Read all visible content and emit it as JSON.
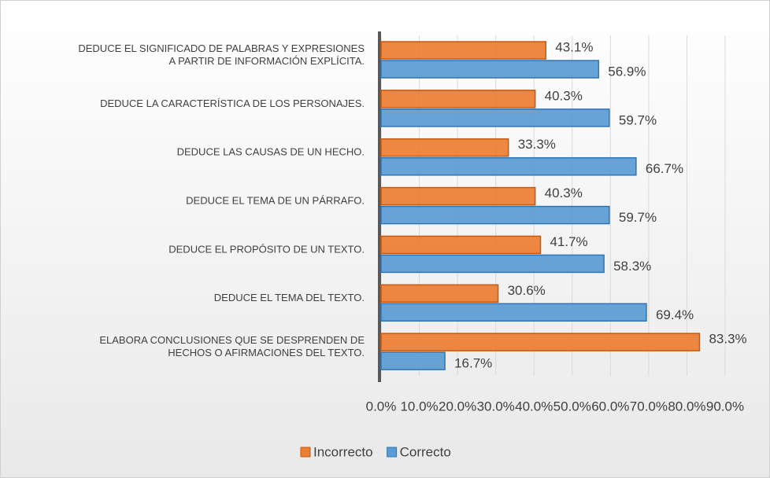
{
  "chart_data": {
    "type": "bar",
    "orientation": "horizontal",
    "categories": [
      "DEDUCE EL SIGNIFICADO DE PALABRAS Y EXPRESIONES\nA PARTIR DE INFORMACIÓN EXPLÍCITA.",
      "DEDUCE LA CARACTERÍSTICA DE LOS PERSONAJES.",
      "DEDUCE LAS CAUSAS DE UN HECHO.",
      "DEDUCE EL TEMA DE UN PÁRRAFO.",
      "DEDUCE EL PROPÓSITO DE UN TEXTO.",
      "DEDUCE EL TEMA DEL TEXTO.",
      "ELABORA CONCLUSIONES QUE SE DESPRENDEN DE\nHECHOS O AFIRMACIONES DEL TEXTO."
    ],
    "series": [
      {
        "name": "Incorrecto",
        "color": "#ed7d31",
        "values": [
          43.1,
          40.3,
          33.3,
          40.3,
          41.7,
          30.6,
          83.3
        ],
        "value_labels": [
          "43.1%",
          "40.3%",
          "33.3%",
          "40.3%",
          "41.7%",
          "30.6%",
          "83.3%"
        ]
      },
      {
        "name": "Correcto",
        "color": "#5b9bd5",
        "values": [
          56.9,
          59.7,
          66.7,
          59.7,
          58.3,
          69.4,
          16.7
        ],
        "value_labels": [
          "56.9%",
          "59.7%",
          "66.7%",
          "59.7%",
          "58.3%",
          "69.4%",
          "16.7%"
        ]
      }
    ],
    "xlim": [
      0,
      90
    ],
    "xticks": [
      {
        "value": 0,
        "label": "0.0%"
      },
      {
        "value": 10,
        "label": "10.0%"
      },
      {
        "value": 20,
        "label": "20.0%"
      },
      {
        "value": 30,
        "label": "30.0%"
      },
      {
        "value": 40,
        "label": "40.0%"
      },
      {
        "value": 50,
        "label": "50.0%"
      },
      {
        "value": 60,
        "label": "60.0%"
      },
      {
        "value": 70,
        "label": "70.0%"
      },
      {
        "value": 80,
        "label": "80.0%"
      },
      {
        "value": 90,
        "label": "90.0%"
      }
    ],
    "grid": true,
    "legend": "bottom"
  }
}
